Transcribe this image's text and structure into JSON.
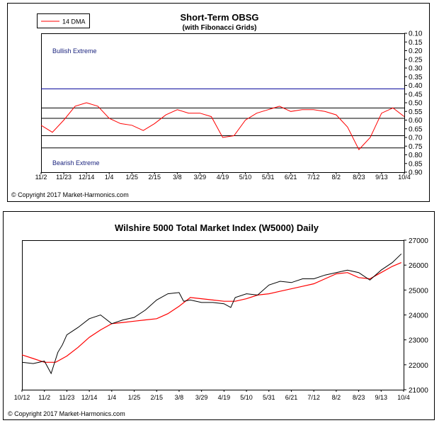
{
  "colors": {
    "ma": "#ff0000",
    "price": "#000000",
    "bullish_line": "#000099",
    "zone_text": "#1a237e"
  },
  "chart_data": [
    {
      "type": "line",
      "title": "Short-Term OBSG",
      "subtitle": "(with Fibonacci Grids)",
      "legend": "14 DMA",
      "legend_position": "top-left",
      "y_inverted": true,
      "ylim": [
        0.1,
        0.9
      ],
      "yticks": [
        "0.10",
        "0.15",
        "0.20",
        "0.25",
        "0.30",
        "0.35",
        "0.40",
        "0.45",
        "0.50",
        "0.55",
        "0.60",
        "0.65",
        "0.70",
        "0.75",
        "0.80",
        "0.85",
        "0.90"
      ],
      "x_labels": [
        "11/2",
        "11/23",
        "12/14",
        "1/4",
        "1/25",
        "2/15",
        "3/8",
        "3/29",
        "4/19",
        "5/10",
        "5/31",
        "6/21",
        "7/12",
        "8/2",
        "8/23",
        "9/13",
        "10/4"
      ],
      "grid": false,
      "annotations": {
        "top": "Bullish Extreme",
        "bottom": "Bearish Extreme"
      },
      "bullish_level": 0.42,
      "fib_levels": [
        0.53,
        0.59,
        0.69,
        0.76
      ],
      "series": [
        {
          "name": "14 DMA",
          "x": [
            0,
            0.5,
            1,
            1.5,
            2,
            2.5,
            3,
            3.5,
            4,
            4.5,
            5,
            5.5,
            6,
            6.5,
            7,
            7.5,
            8,
            8.5,
            9,
            9.5,
            10,
            10.5,
            11,
            11.5,
            12,
            12.5,
            13,
            13.5,
            14,
            14.5,
            15,
            15.5,
            16
          ],
          "values": [
            0.63,
            0.67,
            0.6,
            0.52,
            0.5,
            0.52,
            0.59,
            0.62,
            0.63,
            0.66,
            0.62,
            0.57,
            0.54,
            0.56,
            0.56,
            0.58,
            0.7,
            0.69,
            0.6,
            0.56,
            0.54,
            0.52,
            0.55,
            0.54,
            0.54,
            0.55,
            0.57,
            0.64,
            0.77,
            0.7,
            0.56,
            0.53,
            0.58
          ]
        }
      ],
      "copyright": "© Copyright 2017 Market-Harmonics.com"
    },
    {
      "type": "line",
      "title": "Wilshire 5000 Total Market Index (W5000)  Daily",
      "ylim": [
        21000,
        27000
      ],
      "yticks": [
        "21000",
        "22000",
        "23000",
        "24000",
        "25000",
        "26000",
        "27000"
      ],
      "x_labels": [
        "10/12",
        "11/2",
        "11/23",
        "12/14",
        "1/4",
        "1/25",
        "2/15",
        "3/8",
        "3/29",
        "4/19",
        "5/10",
        "5/31",
        "6/21",
        "7/12",
        "8/2",
        "8/23",
        "9/13",
        "10/4"
      ],
      "grid": false,
      "series": [
        {
          "name": "",
          "x": [
            0,
            0.5,
            1,
            1.3,
            1.6,
            1.8,
            2,
            2.5,
            3,
            3.5,
            4,
            4.5,
            5,
            5.5,
            6,
            6.5,
            7,
            7.2,
            7.5,
            8,
            8.5,
            9,
            9.3,
            9.5,
            10,
            10.5,
            11,
            11.5,
            12,
            12.5,
            13,
            13.5,
            14,
            14.5,
            15,
            15.5,
            16,
            16.5,
            16.9
          ],
          "values": [
            22100,
            22050,
            22150,
            21650,
            22500,
            22800,
            23200,
            23500,
            23850,
            24000,
            23650,
            23800,
            23900,
            24200,
            24600,
            24850,
            24900,
            24550,
            24600,
            24500,
            24500,
            24450,
            24300,
            24700,
            24850,
            24800,
            25200,
            25350,
            25300,
            25450,
            25450,
            25600,
            25700,
            25800,
            25700,
            25400,
            25800,
            26100,
            26450
          ]
        }
      ],
      "ma_series": [
        {
          "name": "",
          "x": [
            0,
            0.5,
            1,
            1.5,
            2,
            2.5,
            3,
            3.5,
            4,
            4.5,
            5,
            5.5,
            6,
            6.5,
            7,
            7.5,
            8,
            8.5,
            9,
            9.5,
            10,
            10.5,
            11,
            11.5,
            12,
            12.5,
            13,
            13.5,
            14,
            14.5,
            15,
            15.5,
            16,
            16.5,
            16.9
          ],
          "values": [
            22400,
            22250,
            22100,
            22100,
            22350,
            22700,
            23100,
            23400,
            23650,
            23700,
            23750,
            23800,
            23850,
            24050,
            24350,
            24700,
            24650,
            24600,
            24550,
            24550,
            24650,
            24800,
            24850,
            24950,
            25050,
            25150,
            25250,
            25450,
            25650,
            25700,
            25500,
            25450,
            25700,
            25950,
            26100
          ]
        }
      ],
      "copyright": "© Copyright 2017 Market-Harmonics.com"
    }
  ]
}
